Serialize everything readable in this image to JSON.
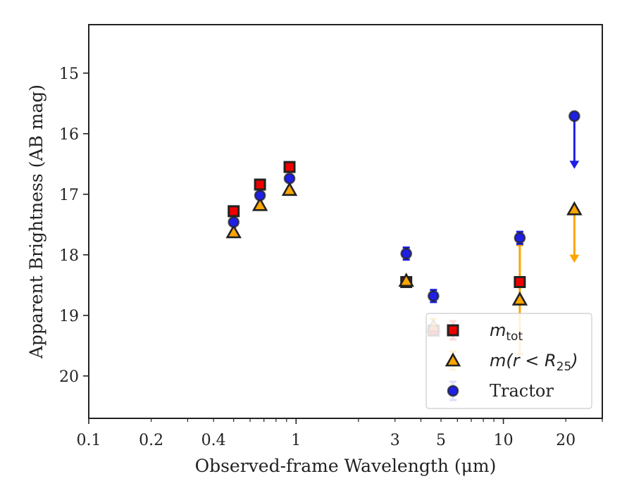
{
  "chart_data": {
    "type": "scatter",
    "xlabel": "Observed-frame Wavelength (μm)",
    "ylabel": "Apparent Brightness (AB mag)",
    "xscale": "log",
    "xlim": [
      0.1,
      30
    ],
    "ylim": [
      20.7,
      14.2
    ],
    "y_inverted": true,
    "x_ticks": [
      {
        "value": 0.1,
        "label": "0.1"
      },
      {
        "value": 0.2,
        "label": "0.2"
      },
      {
        "value": 0.4,
        "label": "0.4"
      },
      {
        "value": 1,
        "label": "1"
      },
      {
        "value": 3,
        "label": "3"
      },
      {
        "value": 5,
        "label": "5"
      },
      {
        "value": 10,
        "label": "10"
      },
      {
        "value": 20,
        "label": "20"
      }
    ],
    "y_ticks": [
      {
        "value": 15,
        "label": "15"
      },
      {
        "value": 16,
        "label": "16"
      },
      {
        "value": 17,
        "label": "17"
      },
      {
        "value": 18,
        "label": "18"
      },
      {
        "value": 19,
        "label": "19"
      },
      {
        "value": 20,
        "label": "20"
      }
    ],
    "legend_position": "bottom-right",
    "series": [
      {
        "name": "m_tot",
        "legend_main": "m",
        "legend_sub": "tot",
        "marker": "square",
        "color": "#ee0000",
        "points": [
          {
            "x": 0.5,
            "y": 17.28
          },
          {
            "x": 0.67,
            "y": 16.84
          },
          {
            "x": 0.93,
            "y": 16.55
          },
          {
            "x": 3.4,
            "y": 18.45,
            "yerr": 0.05
          },
          {
            "x": 4.6,
            "y": 19.25
          },
          {
            "x": 12.0,
            "y": 18.45,
            "yerr": 0.05
          }
        ]
      },
      {
        "name": "m(r<R25)",
        "legend_main": "m(r < R",
        "legend_sub": "25",
        "legend_tail": ")",
        "marker": "triangle",
        "color": "#ffa500",
        "points": [
          {
            "x": 0.5,
            "y": 17.63
          },
          {
            "x": 0.67,
            "y": 17.18
          },
          {
            "x": 0.93,
            "y": 16.93
          },
          {
            "x": 3.4,
            "y": 18.43
          },
          {
            "x": 4.6,
            "y": 19.18,
            "yerr": 0.12
          },
          {
            "x": 12.0,
            "y": 18.74,
            "yerr_low": 0.9,
            "yerr_high": 0.9
          },
          {
            "x": 22.0,
            "y": 17.25,
            "upper_limit_to": 18.05
          }
        ]
      },
      {
        "name": "Tractor",
        "legend_main": "Tractor",
        "marker": "circle",
        "color": "#1f1fe6",
        "points": [
          {
            "x": 0.5,
            "y": 17.46
          },
          {
            "x": 0.67,
            "y": 17.02
          },
          {
            "x": 0.93,
            "y": 16.74
          },
          {
            "x": 3.4,
            "y": 17.98,
            "yerr": 0.1
          },
          {
            "x": 4.6,
            "y": 18.68,
            "yerr": 0.1
          },
          {
            "x": 12.0,
            "y": 17.72,
            "yerr": 0.1
          },
          {
            "x": 22.0,
            "y": 15.71,
            "upper_limit_to": 16.5
          }
        ]
      }
    ]
  }
}
